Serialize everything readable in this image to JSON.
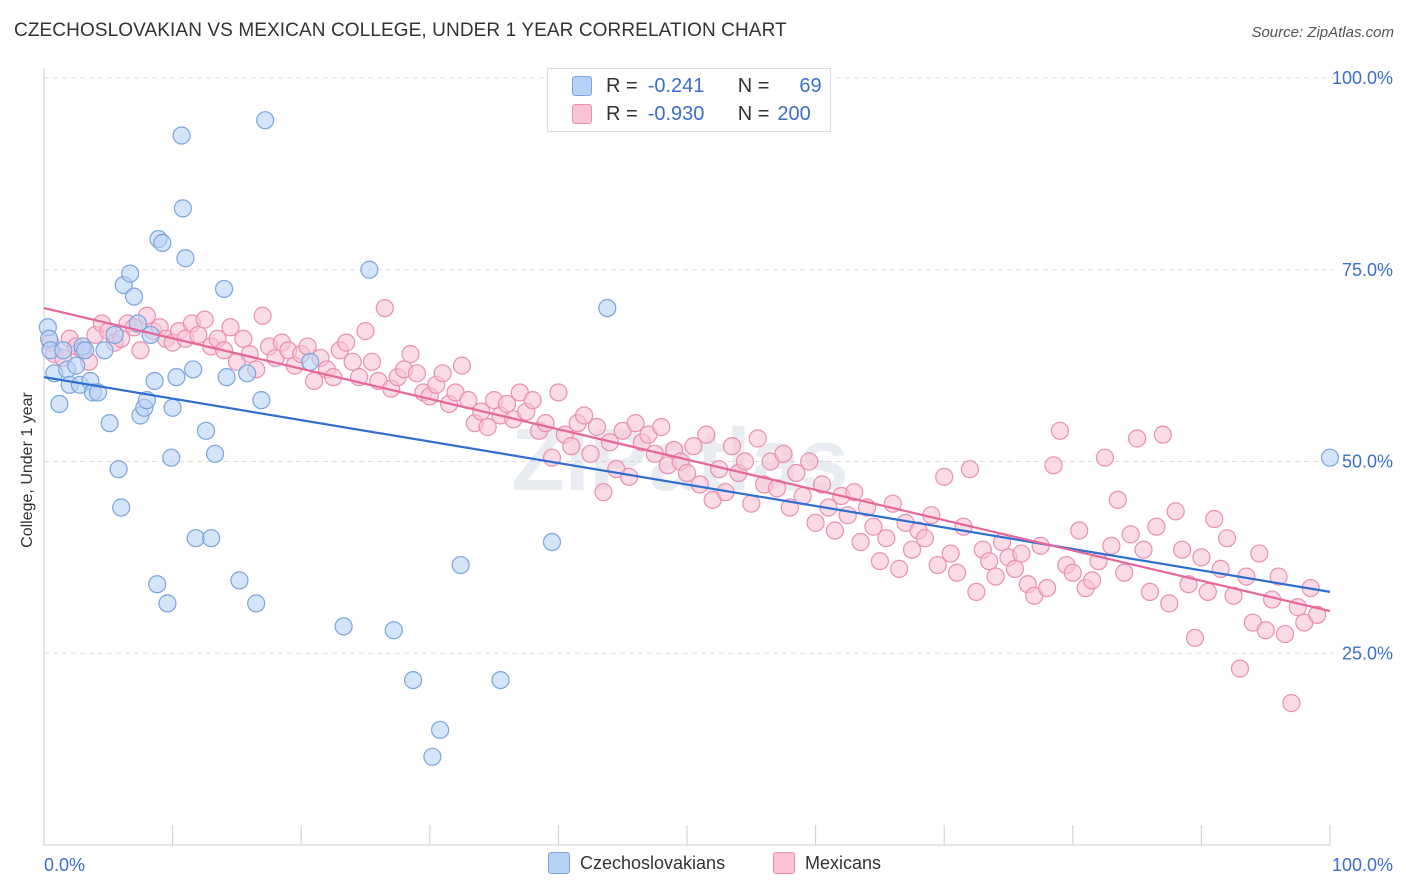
{
  "header": {
    "title": "CZECHOSLOVAKIAN VS MEXICAN COLLEGE, UNDER 1 YEAR CORRELATION CHART",
    "source": "Source: ZipAtlas.com"
  },
  "legend_stats": [
    {
      "r_label": "R =",
      "r_value": "-0.241",
      "n_label": "N =",
      "n_value": "69"
    },
    {
      "r_label": "R =",
      "r_value": "-0.930",
      "n_label": "N =",
      "n_value": "200"
    }
  ],
  "colors": {
    "czech_fill": "#b8d2f5",
    "czech_stroke": "#7ba4df",
    "czech_line": "#2f6fcf",
    "mex_fill": "#f8c3d4",
    "mex_stroke": "#ea8fb0",
    "mex_line": "#e5679a",
    "accent_text": "#3a6fcc",
    "grid": "#dddddd"
  },
  "chart_data": {
    "type": "scatter",
    "title": "CZECHOSLOVAKIAN VS MEXICAN COLLEGE, UNDER 1 YEAR CORRELATION CHART",
    "xlabel": "",
    "ylabel": "College, Under 1 year",
    "xlim": [
      0,
      100
    ],
    "ylim": [
      0,
      100
    ],
    "x_tick_labels": [
      "0.0%",
      "100.0%"
    ],
    "y_tick_labels": [
      "25.0%",
      "50.0%",
      "75.0%",
      "100.0%"
    ],
    "y_ticks": [
      25,
      50,
      75,
      100
    ],
    "grid": true,
    "legend_position": "bottom",
    "series": [
      {
        "name": "Czechoslovakians",
        "color": "#7ba4df",
        "trend": {
          "x": [
            0,
            100
          ],
          "y": [
            61,
            33
          ]
        },
        "points": [
          [
            0.3,
            67.5
          ],
          [
            0.4,
            66
          ],
          [
            0.5,
            64.5
          ],
          [
            0.8,
            61.5
          ],
          [
            1.2,
            57.5
          ],
          [
            1.5,
            64.5
          ],
          [
            1.8,
            62
          ],
          [
            2,
            60
          ],
          [
            2.5,
            62.5
          ],
          [
            2.8,
            60
          ],
          [
            3,
            65
          ],
          [
            3.2,
            64.5
          ],
          [
            3.6,
            60.5
          ],
          [
            3.8,
            59
          ],
          [
            4.2,
            59
          ],
          [
            4.7,
            64.5
          ],
          [
            5.1,
            55
          ],
          [
            5.5,
            66.5
          ],
          [
            5.8,
            49
          ],
          [
            6,
            44
          ],
          [
            6.2,
            73
          ],
          [
            6.7,
            74.5
          ],
          [
            7,
            71.5
          ],
          [
            7.3,
            68
          ],
          [
            7.5,
            56
          ],
          [
            7.8,
            57
          ],
          [
            8,
            58
          ],
          [
            8.3,
            66.5
          ],
          [
            8.6,
            60.5
          ],
          [
            8.8,
            34
          ],
          [
            8.9,
            79
          ],
          [
            9.2,
            78.5
          ],
          [
            9.6,
            31.5
          ],
          [
            9.9,
            50.5
          ],
          [
            10,
            57
          ],
          [
            10.3,
            61
          ],
          [
            10.7,
            92.5
          ],
          [
            10.8,
            83
          ],
          [
            11,
            76.5
          ],
          [
            11.6,
            62
          ],
          [
            11.8,
            40
          ],
          [
            12.6,
            54
          ],
          [
            13,
            40
          ],
          [
            13.3,
            51
          ],
          [
            14,
            72.5
          ],
          [
            14.2,
            61
          ],
          [
            15.2,
            34.5
          ],
          [
            15.8,
            61.5
          ],
          [
            16.5,
            31.5
          ],
          [
            16.9,
            58
          ],
          [
            17.2,
            94.5
          ],
          [
            20.7,
            63
          ],
          [
            23.3,
            28.5
          ],
          [
            25.3,
            75
          ],
          [
            27.2,
            28
          ],
          [
            28.7,
            21.5
          ],
          [
            30.2,
            11.5
          ],
          [
            30.8,
            15
          ],
          [
            32.4,
            36.5
          ],
          [
            35.5,
            21.5
          ],
          [
            39.5,
            39.5
          ],
          [
            43.8,
            70
          ],
          [
            49.7,
            100
          ],
          [
            100,
            50.5
          ]
        ]
      },
      {
        "name": "Mexicans",
        "color": "#ea8fb0",
        "trend": {
          "x": [
            0,
            100
          ],
          "y": [
            70,
            30.5
          ]
        },
        "points": [
          [
            0.5,
            65.5
          ],
          [
            0.8,
            64
          ],
          [
            1.5,
            63.5
          ],
          [
            2,
            66
          ],
          [
            2.5,
            65
          ],
          [
            3,
            64.5
          ],
          [
            3.5,
            63
          ],
          [
            4,
            66.5
          ],
          [
            4.5,
            68
          ],
          [
            5,
            67
          ],
          [
            5.5,
            65.5
          ],
          [
            6,
            66
          ],
          [
            6.5,
            68
          ],
          [
            7,
            67.5
          ],
          [
            7.5,
            64.5
          ],
          [
            8,
            69
          ],
          [
            8.5,
            67
          ],
          [
            9,
            67.5
          ],
          [
            9.5,
            66
          ],
          [
            10,
            65.5
          ],
          [
            10.5,
            67
          ],
          [
            11,
            66
          ],
          [
            11.5,
            68
          ],
          [
            12,
            66.5
          ],
          [
            12.5,
            68.5
          ],
          [
            13,
            65
          ],
          [
            13.5,
            66
          ],
          [
            14,
            64.5
          ],
          [
            14.5,
            67.5
          ],
          [
            15,
            63
          ],
          [
            15.5,
            66
          ],
          [
            16,
            64
          ],
          [
            16.5,
            62
          ],
          [
            17,
            69
          ],
          [
            17.5,
            65
          ],
          [
            18,
            63.5
          ],
          [
            18.5,
            65.5
          ],
          [
            19,
            64.5
          ],
          [
            19.5,
            62.5
          ],
          [
            20,
            64
          ],
          [
            20.5,
            65
          ],
          [
            21,
            60.5
          ],
          [
            21.5,
            63.5
          ],
          [
            22,
            62
          ],
          [
            22.5,
            61
          ],
          [
            23,
            64.5
          ],
          [
            23.5,
            65.5
          ],
          [
            24,
            63
          ],
          [
            24.5,
            61
          ],
          [
            25,
            67
          ],
          [
            25.5,
            63
          ],
          [
            26,
            60.5
          ],
          [
            26.5,
            70
          ],
          [
            27,
            59.5
          ],
          [
            27.5,
            61
          ],
          [
            28,
            62
          ],
          [
            28.5,
            64
          ],
          [
            29,
            61.5
          ],
          [
            29.5,
            59
          ],
          [
            30,
            58.5
          ],
          [
            30.5,
            60
          ],
          [
            31,
            61.5
          ],
          [
            31.5,
            57.5
          ],
          [
            32,
            59
          ],
          [
            32.5,
            62.5
          ],
          [
            33,
            58
          ],
          [
            33.5,
            55
          ],
          [
            34,
            56.5
          ],
          [
            34.5,
            54.5
          ],
          [
            35,
            58
          ],
          [
            35.5,
            56
          ],
          [
            36,
            57.5
          ],
          [
            36.5,
            55.5
          ],
          [
            37,
            59
          ],
          [
            37.5,
            56.5
          ],
          [
            38,
            58
          ],
          [
            38.5,
            54
          ],
          [
            39,
            55
          ],
          [
            39.5,
            50.5
          ],
          [
            40,
            59
          ],
          [
            40.5,
            53.5
          ],
          [
            41,
            52
          ],
          [
            41.5,
            55
          ],
          [
            42,
            56
          ],
          [
            42.5,
            51
          ],
          [
            43,
            54.5
          ],
          [
            43.5,
            46
          ],
          [
            44,
            52.5
          ],
          [
            44.5,
            49
          ],
          [
            45,
            54
          ],
          [
            45.5,
            48
          ],
          [
            46,
            55
          ],
          [
            46.5,
            52.5
          ],
          [
            47,
            53.5
          ],
          [
            47.5,
            51
          ],
          [
            48,
            54.5
          ],
          [
            48.5,
            49.5
          ],
          [
            49,
            51.5
          ],
          [
            49.5,
            50
          ],
          [
            50,
            48.5
          ],
          [
            50.5,
            52
          ],
          [
            51,
            47
          ],
          [
            51.5,
            53.5
          ],
          [
            52,
            45
          ],
          [
            52.5,
            49
          ],
          [
            53,
            46
          ],
          [
            53.5,
            52
          ],
          [
            54,
            48.5
          ],
          [
            54.5,
            50
          ],
          [
            55,
            44.5
          ],
          [
            55.5,
            53
          ],
          [
            56,
            47
          ],
          [
            56.5,
            50
          ],
          [
            57,
            46.5
          ],
          [
            57.5,
            51
          ],
          [
            58,
            44
          ],
          [
            58.5,
            48.5
          ],
          [
            59,
            45.5
          ],
          [
            59.5,
            50
          ],
          [
            60,
            42
          ],
          [
            60.5,
            47
          ],
          [
            61,
            44
          ],
          [
            61.5,
            41
          ],
          [
            62,
            45.5
          ],
          [
            62.5,
            43
          ],
          [
            63,
            46
          ],
          [
            63.5,
            39.5
          ],
          [
            64,
            44
          ],
          [
            64.5,
            41.5
          ],
          [
            65,
            37
          ],
          [
            65.5,
            40
          ],
          [
            66,
            44.5
          ],
          [
            66.5,
            36
          ],
          [
            67,
            42
          ],
          [
            67.5,
            38.5
          ],
          [
            68,
            41
          ],
          [
            68.5,
            40
          ],
          [
            69,
            43
          ],
          [
            69.5,
            36.5
          ],
          [
            70,
            48
          ],
          [
            70.5,
            38
          ],
          [
            71,
            35.5
          ],
          [
            71.5,
            41.5
          ],
          [
            72,
            49
          ],
          [
            72.5,
            33
          ],
          [
            73,
            38.5
          ],
          [
            73.5,
            37
          ],
          [
            74,
            35
          ],
          [
            74.5,
            39.5
          ],
          [
            75,
            37.5
          ],
          [
            75.5,
            36
          ],
          [
            76,
            38
          ],
          [
            76.5,
            34
          ],
          [
            77,
            32.5
          ],
          [
            77.5,
            39
          ],
          [
            78,
            33.5
          ],
          [
            78.5,
            49.5
          ],
          [
            79,
            54
          ],
          [
            79.5,
            36.5
          ],
          [
            80,
            35.5
          ],
          [
            80.5,
            41
          ],
          [
            81,
            33.5
          ],
          [
            81.5,
            34.5
          ],
          [
            82,
            37
          ],
          [
            82.5,
            50.5
          ],
          [
            83,
            39
          ],
          [
            83.5,
            45
          ],
          [
            84,
            35.5
          ],
          [
            84.5,
            40.5
          ],
          [
            85,
            53
          ],
          [
            85.5,
            38.5
          ],
          [
            86,
            33
          ],
          [
            86.5,
            41.5
          ],
          [
            87,
            53.5
          ],
          [
            87.5,
            31.5
          ],
          [
            88,
            43.5
          ],
          [
            88.5,
            38.5
          ],
          [
            89,
            34
          ],
          [
            89.5,
            27
          ],
          [
            90,
            37.5
          ],
          [
            90.5,
            33
          ],
          [
            91,
            42.5
          ],
          [
            91.5,
            36
          ],
          [
            92,
            40
          ],
          [
            92.5,
            32.5
          ],
          [
            93,
            23
          ],
          [
            93.5,
            35
          ],
          [
            94,
            29
          ],
          [
            94.5,
            38
          ],
          [
            95,
            28
          ],
          [
            95.5,
            32
          ],
          [
            96,
            35
          ],
          [
            96.5,
            27.5
          ],
          [
            97,
            18.5
          ],
          [
            97.5,
            31
          ],
          [
            98,
            29
          ],
          [
            98.5,
            33.5
          ],
          [
            99,
            30
          ]
        ]
      }
    ]
  },
  "bottom_legend": [
    "Czechoslovakians",
    "Mexicans"
  ]
}
